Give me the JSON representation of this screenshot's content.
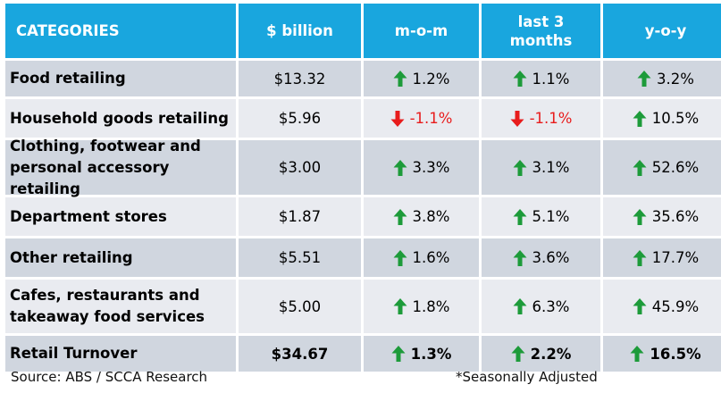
{
  "headers": [
    "CATEGORIES",
    "$ billion",
    "m-o-m",
    "last 3 months",
    "y-o-y"
  ],
  "colors": {
    "header_bg": "#19a6de",
    "up": "#1d9b3a",
    "down": "#e81c1c"
  },
  "rows": [
    {
      "category": "Food retailing",
      "value": "$13.32",
      "mom": {
        "text": "1.2%",
        "dir": "up"
      },
      "l3m": {
        "text": "1.1%",
        "dir": "up"
      },
      "yoy": {
        "text": "3.2%",
        "dir": "up"
      }
    },
    {
      "category": "Household goods retailing",
      "value": "$5.96",
      "mom": {
        "text": "-1.1%",
        "dir": "down"
      },
      "l3m": {
        "text": "-1.1%",
        "dir": "down"
      },
      "yoy": {
        "text": "10.5%",
        "dir": "up"
      }
    },
    {
      "category": "Clothing, footwear and personal accessory retailing",
      "value": "$3.00",
      "mom": {
        "text": "3.3%",
        "dir": "up"
      },
      "l3m": {
        "text": "3.1%",
        "dir": "up"
      },
      "yoy": {
        "text": "52.6%",
        "dir": "up"
      }
    },
    {
      "category": "Department stores",
      "value": "$1.87",
      "mom": {
        "text": "3.8%",
        "dir": "up"
      },
      "l3m": {
        "text": "5.1%",
        "dir": "up"
      },
      "yoy": {
        "text": "35.6%",
        "dir": "up"
      }
    },
    {
      "category": "Other retailing",
      "value": "$5.51",
      "mom": {
        "text": "1.6%",
        "dir": "up"
      },
      "l3m": {
        "text": "3.6%",
        "dir": "up"
      },
      "yoy": {
        "text": "17.7%",
        "dir": "up"
      }
    },
    {
      "category": "Cafes, restaurants and takeaway food services",
      "value": "$5.00",
      "mom": {
        "text": "1.8%",
        "dir": "up"
      },
      "l3m": {
        "text": "6.3%",
        "dir": "up"
      },
      "yoy": {
        "text": "45.9%",
        "dir": "up"
      }
    },
    {
      "category": "Retail Turnover",
      "value": "$34.67",
      "mom": {
        "text": "1.3%",
        "dir": "up"
      },
      "l3m": {
        "text": "2.2%",
        "dir": "up"
      },
      "yoy": {
        "text": "16.5%",
        "dir": "up"
      }
    }
  ],
  "footer": {
    "source": "Source: ABS / SCCA Research",
    "note": "*Seasonally Adjusted"
  }
}
